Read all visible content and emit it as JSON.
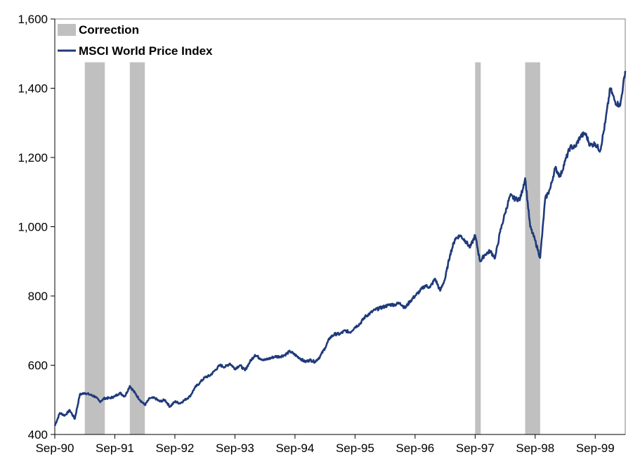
{
  "chart_data": {
    "type": "line",
    "title": "",
    "xlabel": "",
    "ylabel": "",
    "ylim": [
      400,
      1600
    ],
    "yticks": [
      400,
      600,
      800,
      1000,
      1200,
      1400,
      1600
    ],
    "ytick_labels": [
      "400",
      "600",
      "800",
      "1,000",
      "1,200",
      "1,400",
      "1,600"
    ],
    "xlim": [
      "1990-09",
      "2000-03"
    ],
    "xticks": [
      "1990-09",
      "1991-09",
      "1992-09",
      "1993-09",
      "1994-09",
      "1995-09",
      "1996-09",
      "1997-09",
      "1998-09",
      "1999-09"
    ],
    "xtick_labels": [
      "Sep-90",
      "Sep-91",
      "Sep-92",
      "Sep-93",
      "Sep-94",
      "Sep-95",
      "Sep-96",
      "Sep-97",
      "Sep-98",
      "Sep-99"
    ],
    "grid": false,
    "legend_position": "top-left",
    "legend": [
      {
        "label": "Correction",
        "kind": "bar",
        "color": "#c0c0c0"
      },
      {
        "label": "MSCI World Price Index",
        "kind": "line",
        "color": "#1f3a7a"
      }
    ],
    "correction_periods": [
      {
        "start": "1991-03",
        "end": "1991-07"
      },
      {
        "start": "1991-12",
        "end": "1992-03"
      },
      {
        "start": "1997-09",
        "end": "1997-10"
      },
      {
        "start": "1998-07",
        "end": "1998-10"
      }
    ],
    "correction_top": 1475,
    "series": [
      {
        "name": "MSCI World Price Index",
        "color": "#1f3a7a",
        "points": [
          [
            "1990-09",
            425
          ],
          [
            "1990-10",
            462
          ],
          [
            "1990-11",
            455
          ],
          [
            "1990-12",
            470
          ],
          [
            "1991-01",
            445
          ],
          [
            "1991-02",
            515
          ],
          [
            "1991-03",
            520
          ],
          [
            "1991-04",
            515
          ],
          [
            "1991-05",
            510
          ],
          [
            "1991-06",
            495
          ],
          [
            "1991-07",
            505
          ],
          [
            "1991-08",
            505
          ],
          [
            "1991-09",
            510
          ],
          [
            "1991-10",
            520
          ],
          [
            "1991-11",
            510
          ],
          [
            "1991-12",
            540
          ],
          [
            "1992-01",
            520
          ],
          [
            "1992-02",
            500
          ],
          [
            "1992-03",
            485
          ],
          [
            "1992-04",
            505
          ],
          [
            "1992-05",
            505
          ],
          [
            "1992-06",
            495
          ],
          [
            "1992-07",
            500
          ],
          [
            "1992-08",
            480
          ],
          [
            "1992-09",
            495
          ],
          [
            "1992-10",
            490
          ],
          [
            "1992-11",
            500
          ],
          [
            "1992-12",
            510
          ],
          [
            "1993-01",
            535
          ],
          [
            "1993-02",
            550
          ],
          [
            "1993-03",
            565
          ],
          [
            "1993-04",
            570
          ],
          [
            "1993-05",
            585
          ],
          [
            "1993-06",
            600
          ],
          [
            "1993-07",
            595
          ],
          [
            "1993-08",
            605
          ],
          [
            "1993-09",
            590
          ],
          [
            "1993-10",
            600
          ],
          [
            "1993-11",
            585
          ],
          [
            "1993-12",
            610
          ],
          [
            "1994-01",
            630
          ],
          [
            "1994-02",
            620
          ],
          [
            "1994-03",
            615
          ],
          [
            "1994-04",
            620
          ],
          [
            "1994-05",
            625
          ],
          [
            "1994-06",
            625
          ],
          [
            "1994-07",
            630
          ],
          [
            "1994-08",
            640
          ],
          [
            "1994-09",
            630
          ],
          [
            "1994-10",
            620
          ],
          [
            "1994-11",
            610
          ],
          [
            "1994-12",
            615
          ],
          [
            "1995-01",
            610
          ],
          [
            "1995-02",
            625
          ],
          [
            "1995-03",
            650
          ],
          [
            "1995-04",
            680
          ],
          [
            "1995-05",
            690
          ],
          [
            "1995-06",
            690
          ],
          [
            "1995-07",
            700
          ],
          [
            "1995-08",
            695
          ],
          [
            "1995-09",
            710
          ],
          [
            "1995-10",
            720
          ],
          [
            "1995-11",
            740
          ],
          [
            "1995-12",
            750
          ],
          [
            "1996-01",
            760
          ],
          [
            "1996-02",
            765
          ],
          [
            "1996-03",
            770
          ],
          [
            "1996-04",
            775
          ],
          [
            "1996-05",
            775
          ],
          [
            "1996-06",
            780
          ],
          [
            "1996-07",
            765
          ],
          [
            "1996-08",
            785
          ],
          [
            "1996-09",
            800
          ],
          [
            "1996-10",
            815
          ],
          [
            "1996-11",
            830
          ],
          [
            "1996-12",
            825
          ],
          [
            "1997-01",
            850
          ],
          [
            "1997-02",
            815
          ],
          [
            "1997-03",
            850
          ],
          [
            "1997-04",
            920
          ],
          [
            "1997-05",
            965
          ],
          [
            "1997-06",
            975
          ],
          [
            "1997-07",
            960
          ],
          [
            "1997-08",
            940
          ],
          [
            "1997-09",
            975
          ],
          [
            "1997-10",
            900
          ],
          [
            "1997-11",
            920
          ],
          [
            "1997-12",
            930
          ],
          [
            "1998-01",
            910
          ],
          [
            "1998-02",
            985
          ],
          [
            "1998-03",
            1040
          ],
          [
            "1998-04",
            1090
          ],
          [
            "1998-05",
            1080
          ],
          [
            "1998-06",
            1080
          ],
          [
            "1998-07",
            1140
          ],
          [
            "1998-08",
            1000
          ],
          [
            "1998-09",
            960
          ],
          [
            "1998-10",
            910
          ],
          [
            "1998-11",
            1080
          ],
          [
            "1998-12",
            1110
          ],
          [
            "1999-01",
            1170
          ],
          [
            "1999-02",
            1145
          ],
          [
            "1999-03",
            1190
          ],
          [
            "1999-04",
            1230
          ],
          [
            "1999-05",
            1230
          ],
          [
            "1999-06",
            1260
          ],
          [
            "1999-07",
            1270
          ],
          [
            "1999-08",
            1235
          ],
          [
            "1999-09",
            1240
          ],
          [
            "1999-10",
            1220
          ],
          [
            "1999-11",
            1300
          ],
          [
            "1999-12",
            1400
          ],
          [
            "2000-01",
            1360
          ],
          [
            "2000-02",
            1350
          ],
          [
            "2000-03",
            1450
          ]
        ]
      }
    ]
  }
}
